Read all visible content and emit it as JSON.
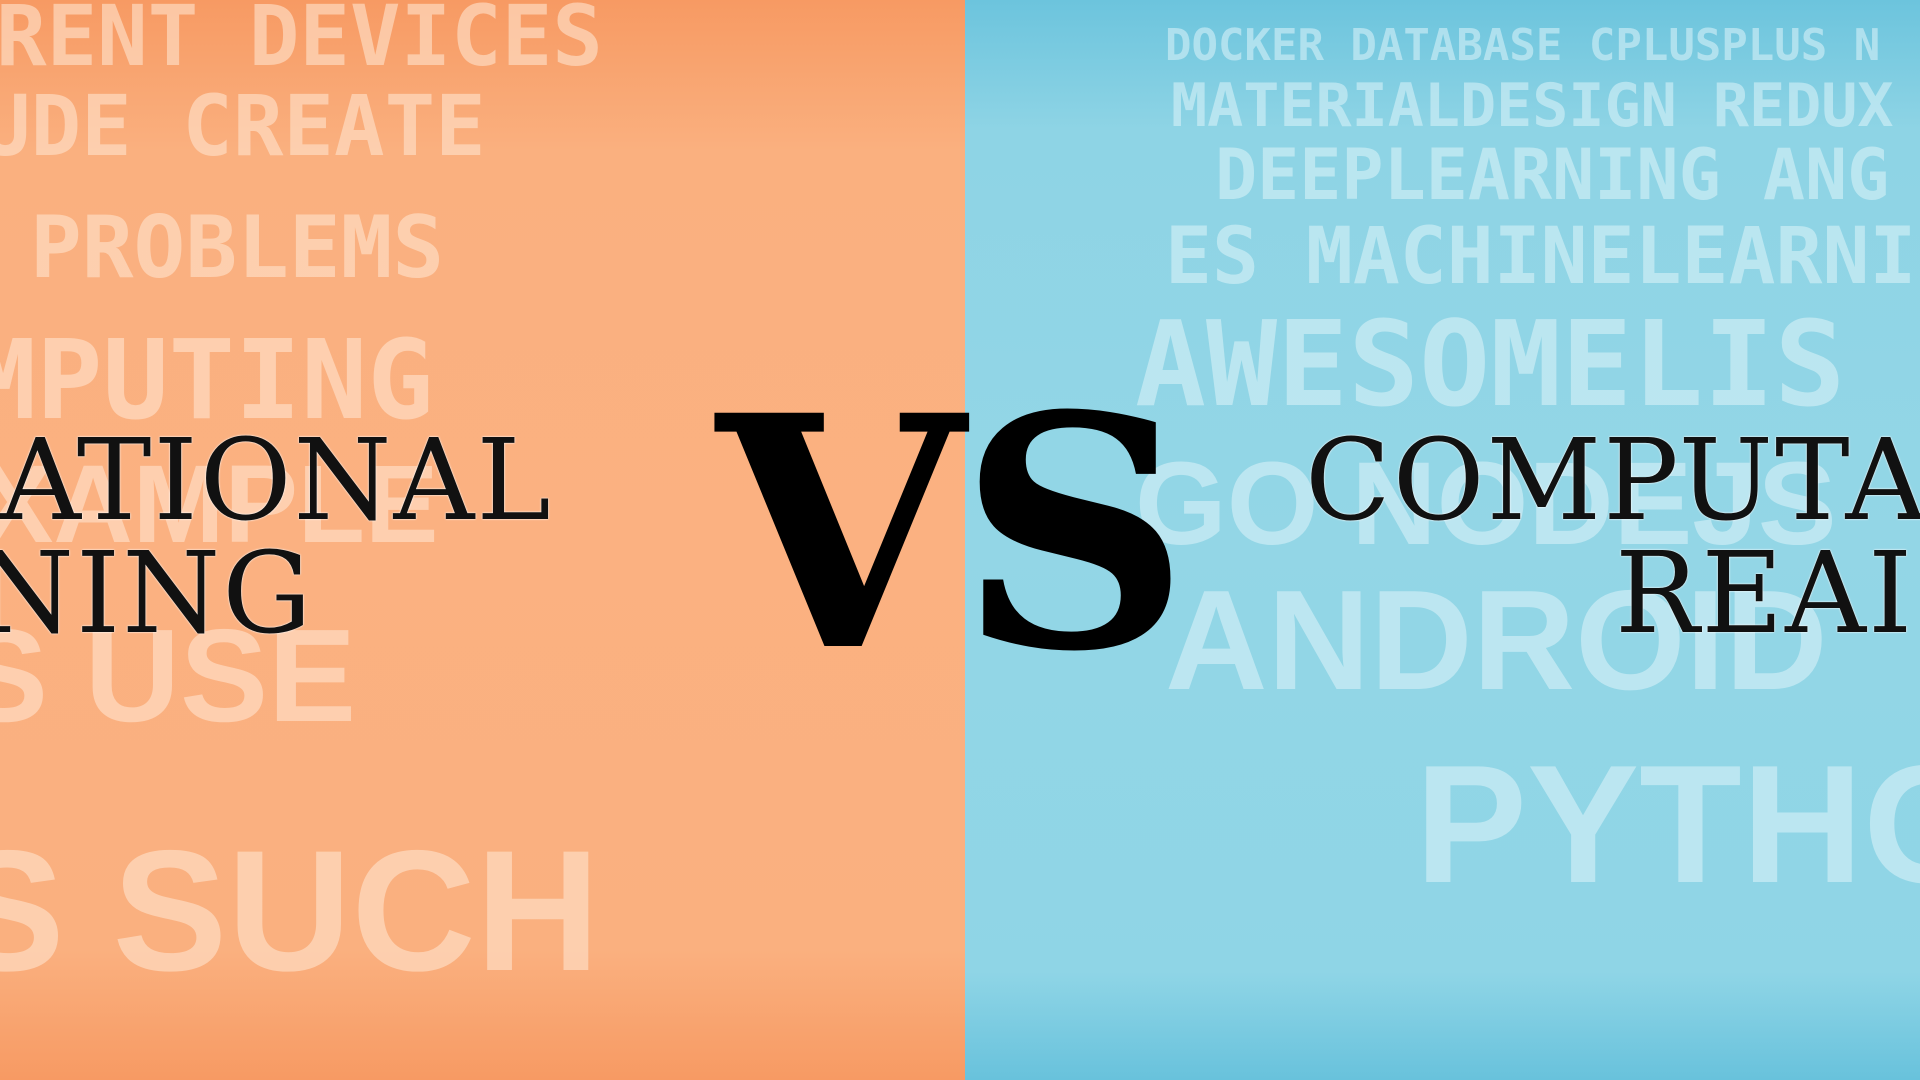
{
  "left_panel": {
    "background_color": "#fbb181",
    "words": [
      "RENT DEVICES",
      "UDE CREATE",
      "PROBLEMS",
      "MPUTING",
      "XAMPLE",
      "S USE",
      "S SUCH"
    ],
    "title_lines": [
      "ATIONAL",
      "NING"
    ]
  },
  "right_panel": {
    "background_color": "#93d6e6",
    "words": [
      "DOCKER DATABASE CPLUSPLUS N",
      "MATERIALDESIGN REDUX",
      "DEEPLEARNING ANG",
      "ES MACHINELEARNI",
      "AWESOMELIS",
      "GO NODEJS",
      "ANDROID",
      "PYTHO"
    ],
    "title_lines": [
      "COMPUTA",
      "REAI"
    ]
  },
  "center": {
    "vs_text": "VS"
  }
}
